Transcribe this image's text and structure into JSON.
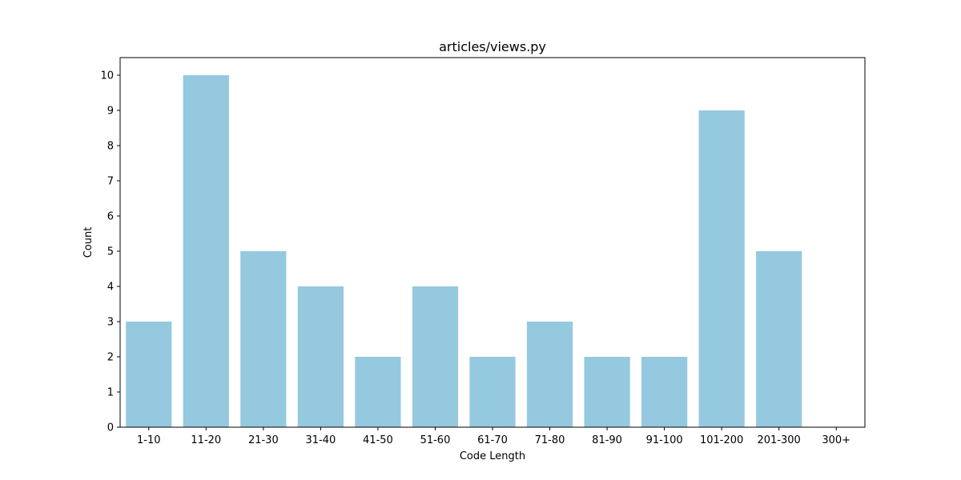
{
  "chart_data": {
    "type": "bar",
    "title": "articles/views.py",
    "xlabel": "Code Length",
    "ylabel": "Count",
    "categories": [
      "1-10",
      "11-20",
      "21-30",
      "31-40",
      "41-50",
      "51-60",
      "61-70",
      "71-80",
      "81-90",
      "91-100",
      "101-200",
      "201-300",
      "300+"
    ],
    "values": [
      3,
      10,
      5,
      4,
      2,
      4,
      2,
      3,
      2,
      2,
      9,
      5,
      0
    ],
    "ylim": [
      0,
      10.5
    ],
    "yticks": [
      0,
      1,
      2,
      3,
      4,
      5,
      6,
      7,
      8,
      9,
      10
    ],
    "bar_color": "#95c9df",
    "grid": false,
    "legend": "none"
  }
}
